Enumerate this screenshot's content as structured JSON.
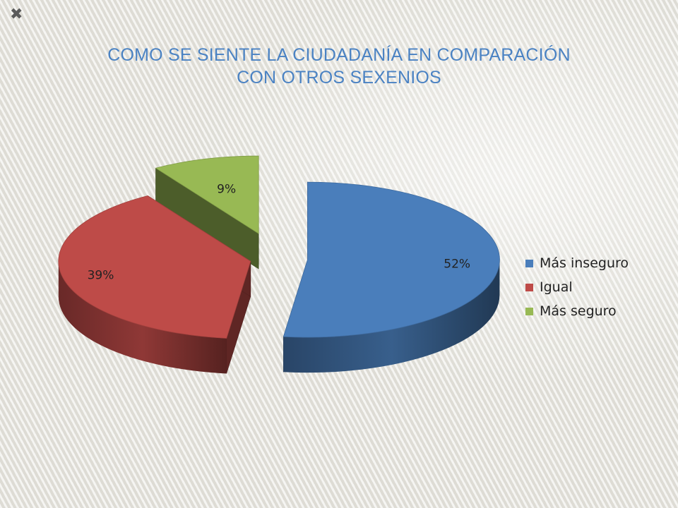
{
  "corner_mark": "✖",
  "chart_data": {
    "type": "pie",
    "title": "COMO SE SIENTE LA CIUDADANÍA EN COMPARACIÓN",
    "title_line2": "CON OTROS SEXENIOS",
    "categories": [
      "Más inseguro",
      "Igual",
      "Más seguro"
    ],
    "values": [
      52,
      39,
      9
    ],
    "data_labels": [
      "52%",
      "39%",
      "9%"
    ],
    "colors": [
      "#4a7ebb",
      "#be4b48",
      "#98b954"
    ],
    "legend_position": "right",
    "style": "3d-exploded"
  }
}
